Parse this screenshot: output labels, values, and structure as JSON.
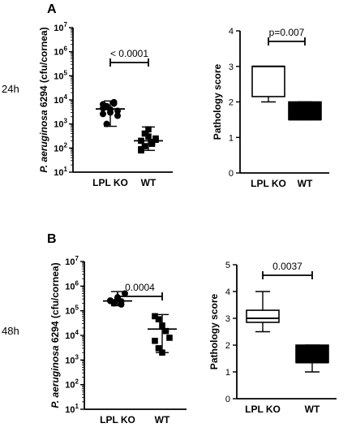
{
  "figure": {
    "panel_a_letter": "A",
    "panel_b_letter": "B",
    "row_a_time": "24h",
    "row_b_time": "48h"
  },
  "colors": {
    "ink": "#000000",
    "background": "#ffffff"
  },
  "chart_data": [
    {
      "id": "A-cfu",
      "type": "scatter",
      "title": "",
      "ylabel_italic": "P. aeruginosa",
      "ylabel_rest": "6294 (cfu/cornea)",
      "yscale": "log",
      "ylim_exp": [
        1,
        7
      ],
      "ytick_exps": [
        1,
        2,
        3,
        4,
        5,
        6,
        7
      ],
      "categories": [
        "LPL KO",
        "WT"
      ],
      "points": [
        [
          4500,
          5500,
          3000,
          8000,
          2200,
          6500,
          1000,
          4000,
          7000,
          3500,
          2600,
          5000
        ],
        [
          200,
          120,
          300,
          180,
          250,
          90,
          400,
          600,
          150,
          220,
          80
        ]
      ],
      "medians": [
        4200,
        200
      ],
      "iqr": [
        [
          2000,
          6500
        ],
        [
          120,
          300
        ]
      ],
      "range": [
        [
          800,
          9000
        ],
        [
          80,
          750
        ]
      ],
      "significance": "< 0.0001"
    },
    {
      "id": "A-path",
      "type": "box",
      "title": "",
      "ylabel": "Pathology score",
      "ylim": [
        0,
        4
      ],
      "yticks": [
        0,
        1,
        2,
        3,
        4
      ],
      "categories": [
        "LPL KO",
        "WT"
      ],
      "boxes": [
        {
          "min": 2,
          "q1": 2.15,
          "median": 3,
          "q3": 3,
          "max": 3,
          "fill": "#ffffff"
        },
        {
          "min": 1.5,
          "q1": 1.5,
          "median": 1.5,
          "q3": 2,
          "max": 2,
          "fill": "#000000"
        }
      ],
      "significance": "p=0.007"
    },
    {
      "id": "B-cfu",
      "type": "scatter",
      "title": "",
      "ylabel_italic": "P. aeruginosa",
      "ylabel_rest": "6294 (cfu/cornea)",
      "yscale": "log",
      "ylim_exp": [
        1,
        7
      ],
      "ytick_exps": [
        1,
        2,
        3,
        4,
        5,
        6,
        7
      ],
      "categories": [
        "LPL KO",
        "WT"
      ],
      "points": [
        [
          250000,
          220000,
          300000,
          180000,
          500000,
          260000,
          200000,
          350000,
          240000
        ],
        [
          60000,
          45000,
          25000,
          15000,
          8000,
          6000,
          3000,
          2000
        ]
      ],
      "medians": [
        250000,
        18000
      ],
      "iqr": [
        [
          200000,
          350000
        ],
        [
          3000,
          50000
        ]
      ],
      "range": [
        [
          160000,
          600000
        ],
        [
          2000,
          70000
        ]
      ],
      "significance": "0.0004"
    },
    {
      "id": "B-path",
      "type": "box",
      "title": "",
      "ylabel": "Pathology score",
      "ylim": [
        0,
        5
      ],
      "yticks": [
        0,
        1,
        2,
        3,
        4,
        5
      ],
      "categories": [
        "LPL KO",
        "WT"
      ],
      "boxes": [
        {
          "min": 2.5,
          "q1": 2.85,
          "median": 3,
          "q3": 3.3,
          "max": 4,
          "fill": "#ffffff"
        },
        {
          "min": 1,
          "q1": 1.35,
          "median": 1.35,
          "q3": 2,
          "max": 2,
          "fill": "#000000"
        }
      ],
      "significance": "0.0037"
    }
  ]
}
